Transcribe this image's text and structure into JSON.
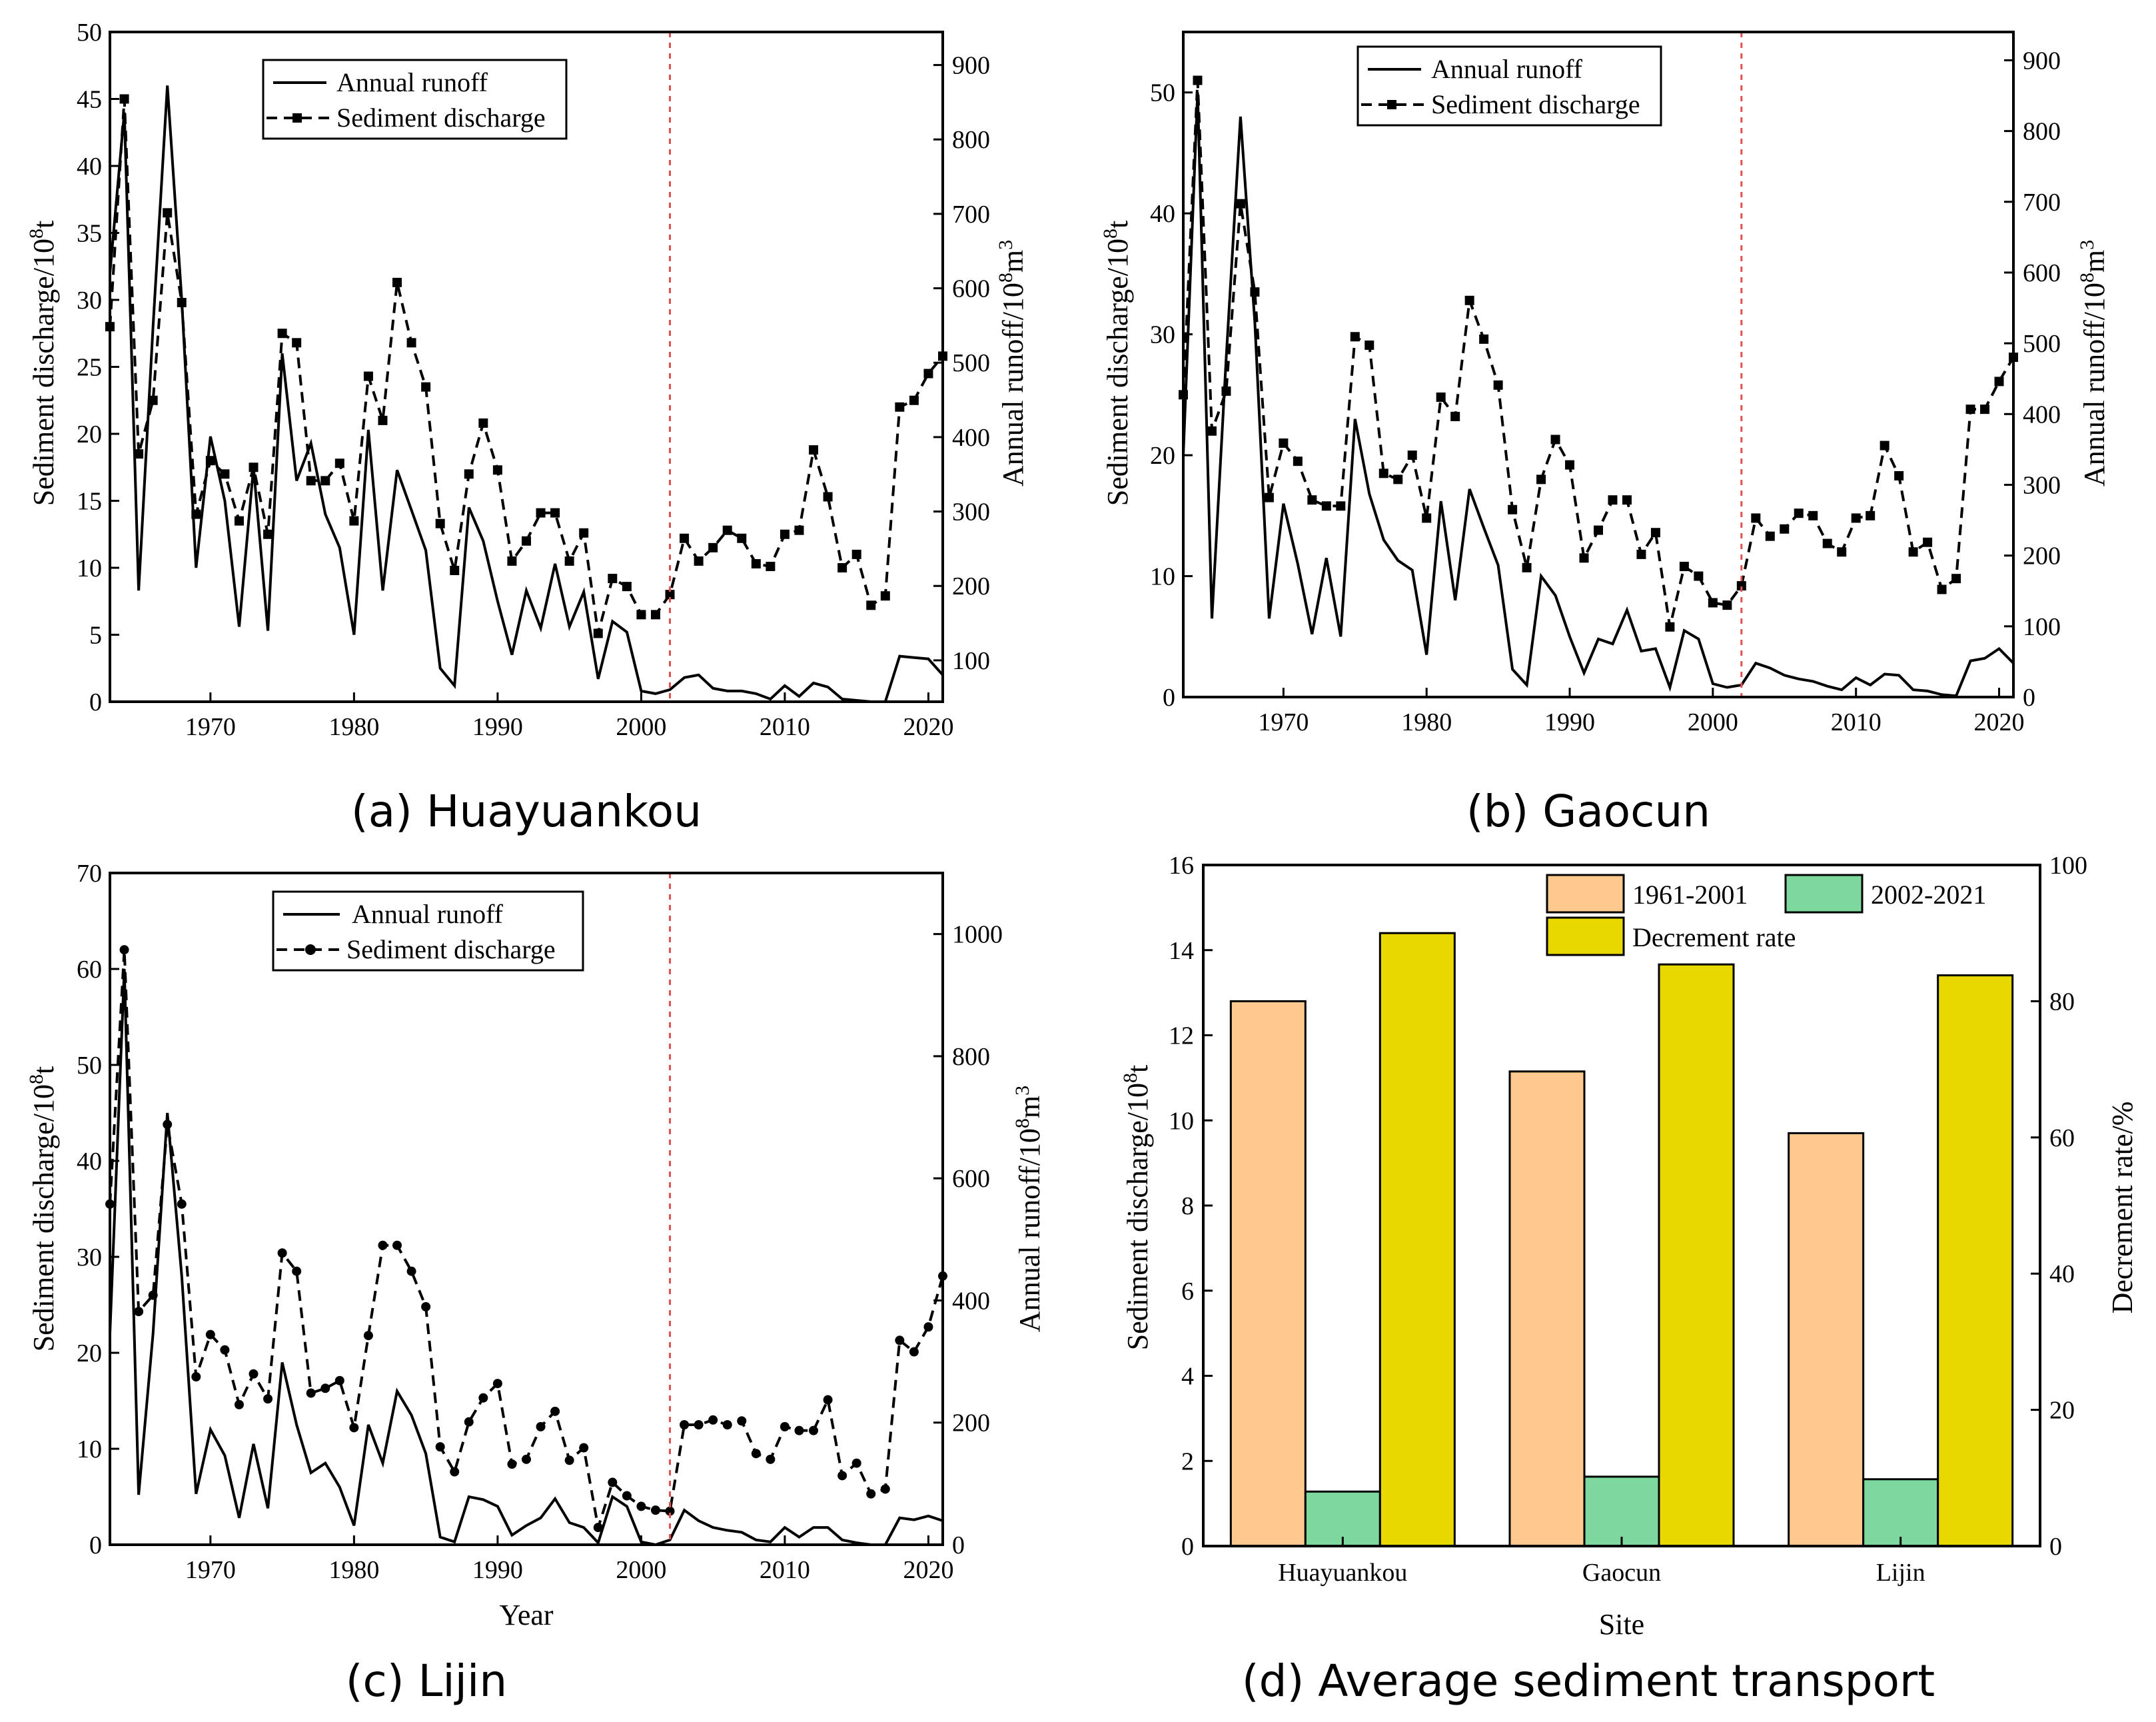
{
  "chart_data": [
    {
      "id": "a",
      "type": "line",
      "caption": "(a) Huayuankou",
      "xlabel": "",
      "ylabel_left_main": "Sediment discharge/10",
      "ylabel_left_sup": "8",
      "ylabel_left_tail": "t",
      "ylabel_right_main": "Annual runoff/10",
      "ylabel_right_sup": "8",
      "ylabel_right_tail": "m",
      "ylabel_right_sup2": "3",
      "xlim": [
        1963,
        2021
      ],
      "ylim_left": [
        0,
        50
      ],
      "ylim_right": [
        44.4,
        944.4
      ],
      "x_ticks": [
        1970,
        1980,
        1990,
        2000,
        2010,
        2020
      ],
      "x_tick_labels": [
        "1970",
        "1980",
        "1990",
        "2000",
        "2010",
        "2020"
      ],
      "left_ticks": [
        0,
        5,
        10,
        15,
        20,
        25,
        30,
        35,
        40,
        45,
        50
      ],
      "left_tick_labels": [
        "0",
        "5",
        "10",
        "15",
        "20",
        "25",
        "30",
        "35",
        "40",
        "45",
        "50"
      ],
      "right_ticks": [
        100,
        200,
        300,
        400,
        500,
        600,
        700,
        800,
        900
      ],
      "right_tick_labels": [
        "100",
        "200",
        "300",
        "400",
        "500",
        "600",
        "700",
        "800",
        "900"
      ],
      "divider_x": 2002,
      "legend": {
        "position": "top-left",
        "runoff_label": "Annual runoff",
        "sediment_label": "Sediment discharge"
      },
      "years": [
        1963,
        1964,
        1965,
        1966,
        1967,
        1968,
        1969,
        1970,
        1971,
        1972,
        1973,
        1974,
        1975,
        1976,
        1977,
        1978,
        1979,
        1980,
        1981,
        1982,
        1983,
        1984,
        1985,
        1986,
        1987,
        1988,
        1989,
        1990,
        1991,
        1992,
        1993,
        1994,
        1995,
        1996,
        1997,
        1998,
        1999,
        2000,
        2001,
        2002,
        2003,
        2004,
        2005,
        2006,
        2007,
        2008,
        2009,
        2010,
        2011,
        2012,
        2013,
        2014,
        2015,
        2016,
        2017,
        2018,
        2019,
        2020,
        2021
      ],
      "runoff_left_scale": [
        32,
        44,
        8.3,
        28,
        46,
        30,
        10,
        19.8,
        15,
        5.6,
        17.5,
        5.3,
        26,
        16.5,
        19.3,
        14,
        11.5,
        5,
        20.3,
        8.3,
        17.3,
        14.3,
        11.3,
        2.5,
        1.2,
        14.5,
        12,
        7.5,
        3.5,
        8.3,
        5.5,
        10.3,
        5.6,
        8.2,
        1.7,
        6,
        5.2,
        0.8,
        0.6,
        0.9,
        1.8,
        2,
        1,
        0.8,
        0.8,
        0.6,
        0.2,
        1.2,
        0.4,
        1.4,
        1.1,
        0.2,
        0.1,
        0,
        0,
        3.4,
        3.3,
        3.2,
        2
      ],
      "sediment": [
        28,
        45,
        18.5,
        22.5,
        36.5,
        29.8,
        14,
        18,
        17,
        13.5,
        17.5,
        12.5,
        27.5,
        26.8,
        16.5,
        16.5,
        17.8,
        13.5,
        24.3,
        21,
        31.3,
        26.8,
        23.5,
        13.3,
        9.8,
        17,
        20.8,
        17.3,
        10.5,
        12,
        14.1,
        14.1,
        10.5,
        12.6,
        5.1,
        9.2,
        8.6,
        6.5,
        6.5,
        8,
        12.2,
        10.5,
        11.5,
        12.8,
        12.2,
        10.3,
        10.1,
        12.5,
        12.8,
        18.8,
        15.3,
        10,
        11,
        7.2,
        7.9,
        22,
        22.5,
        24.5,
        25.8
      ]
    },
    {
      "id": "b",
      "type": "line",
      "caption": "(b) Gaocun",
      "xlabel": "",
      "ylabel_left_main": "Sediment discharge/10",
      "ylabel_left_sup": "8",
      "ylabel_left_tail": "t",
      "ylabel_right_main": "Annual runoff/10",
      "ylabel_right_sup": "8",
      "ylabel_right_tail": "m",
      "ylabel_right_sup2": "3",
      "xlim": [
        1963,
        2021
      ],
      "ylim_left": [
        0,
        55
      ],
      "ylim_right": [
        0,
        940
      ],
      "x_ticks": [
        1970,
        1980,
        1990,
        2000,
        2010,
        2020
      ],
      "x_tick_labels": [
        "1970",
        "1980",
        "1990",
        "2000",
        "2010",
        "2020"
      ],
      "left_ticks": [
        0,
        10,
        20,
        30,
        40,
        50
      ],
      "left_tick_labels": [
        "0",
        "10",
        "20",
        "30",
        "40",
        "50"
      ],
      "right_ticks": [
        0,
        100,
        200,
        300,
        400,
        500,
        600,
        700,
        800,
        900
      ],
      "right_tick_labels": [
        "0",
        "100",
        "200",
        "300",
        "400",
        "500",
        "600",
        "700",
        "800",
        "900"
      ],
      "divider_x": 2002,
      "legend": {
        "position": "top-left",
        "runoff_label": "Annual runoff",
        "sediment_label": "Sediment discharge"
      },
      "years": [
        1963,
        1964,
        1965,
        1966,
        1967,
        1968,
        1969,
        1970,
        1971,
        1972,
        1973,
        1974,
        1975,
        1976,
        1977,
        1978,
        1979,
        1980,
        1981,
        1982,
        1983,
        1984,
        1985,
        1986,
        1987,
        1988,
        1989,
        1990,
        1991,
        1992,
        1993,
        1994,
        1995,
        1996,
        1997,
        1998,
        1999,
        2000,
        2001,
        2002,
        2003,
        2004,
        2005,
        2006,
        2007,
        2008,
        2009,
        2010,
        2011,
        2012,
        2013,
        2014,
        2015,
        2016,
        2017,
        2018,
        2019,
        2020,
        2021
      ],
      "runoff_left_scale": [
        20,
        50,
        6.5,
        28,
        48,
        31,
        6.5,
        16,
        11,
        5.2,
        11.5,
        5,
        23,
        16.8,
        13,
        11.3,
        10.5,
        3.5,
        16.2,
        8,
        17.2,
        14,
        10.9,
        2.3,
        1,
        10,
        8.4,
        5,
        2,
        4.8,
        4.4,
        7.2,
        3.8,
        4,
        0.8,
        5.5,
        4.8,
        1.1,
        0.8,
        1,
        2.8,
        2.4,
        1.8,
        1.5,
        1.3,
        0.9,
        0.6,
        1.6,
        1,
        1.9,
        1.8,
        0.6,
        0.5,
        0.2,
        0.1,
        3,
        3.2,
        4,
        2.8
      ],
      "sediment": [
        25,
        51,
        22,
        25.3,
        40.8,
        33.5,
        16.5,
        21,
        19.5,
        16.3,
        15.8,
        15.8,
        29.8,
        29.1,
        18.5,
        18,
        20,
        14.8,
        24.8,
        23.2,
        32.8,
        29.6,
        25.8,
        15.5,
        10.7,
        18,
        21.3,
        19.2,
        11.5,
        13.8,
        16.3,
        16.3,
        11.8,
        13.6,
        5.8,
        10.8,
        10,
        7.8,
        7.6,
        9.2,
        14.8,
        13.3,
        13.9,
        15.2,
        15,
        12.7,
        12,
        14.8,
        15,
        20.8,
        18.3,
        12,
        12.8,
        8.9,
        9.8,
        23.8,
        23.8,
        26.1,
        28.1
      ]
    },
    {
      "id": "c",
      "type": "line",
      "caption": "(c) Lijin",
      "xlabel": "Year",
      "ylabel_left_main": "Sediment discharge/10",
      "ylabel_left_sup": "8",
      "ylabel_left_tail": "t",
      "ylabel_right_main": "Annual runoff/10",
      "ylabel_right_sup": "8",
      "ylabel_right_tail": "m",
      "ylabel_right_sup2": "3",
      "xlim": [
        1963,
        2021
      ],
      "ylim_left": [
        0,
        70
      ],
      "ylim_right": [
        0,
        1100
      ],
      "x_ticks": [
        1970,
        1980,
        1990,
        2000,
        2010,
        2020
      ],
      "x_tick_labels": [
        "1970",
        "1980",
        "1990",
        "2000",
        "2010",
        "2020"
      ],
      "left_ticks": [
        0,
        10,
        20,
        30,
        40,
        50,
        60,
        70
      ],
      "left_tick_labels": [
        "0",
        "10",
        "20",
        "30",
        "40",
        "50",
        "60",
        "70"
      ],
      "right_ticks": [
        0,
        200,
        400,
        600,
        800,
        1000
      ],
      "right_tick_labels": [
        "0",
        "200",
        "400",
        "600",
        "800",
        "1000"
      ],
      "divider_x": 2002,
      "legend": {
        "position": "top-left",
        "runoff_label": "Annual runoff",
        "sediment_label": "Sediment discharge"
      },
      "years": [
        1963,
        1964,
        1965,
        1966,
        1967,
        1968,
        1969,
        1970,
        1971,
        1972,
        1973,
        1974,
        1975,
        1976,
        1977,
        1978,
        1979,
        1980,
        1981,
        1982,
        1983,
        1984,
        1985,
        1986,
        1987,
        1988,
        1989,
        1990,
        1991,
        1992,
        1993,
        1994,
        1995,
        1996,
        1997,
        1998,
        1999,
        2000,
        2001,
        2002,
        2003,
        2004,
        2005,
        2006,
        2007,
        2008,
        2009,
        2010,
        2011,
        2012,
        2013,
        2014,
        2015,
        2016,
        2017,
        2018,
        2019,
        2020,
        2021
      ],
      "runoff_left_scale": [
        22,
        60,
        5.2,
        22,
        45,
        28,
        5.3,
        12,
        9.3,
        2.8,
        10.5,
        3.8,
        19,
        12.5,
        7.5,
        8.5,
        6,
        2,
        12.5,
        8.5,
        16,
        13.5,
        9.5,
        0.8,
        0.3,
        5,
        4.7,
        4,
        1,
        2,
        2.8,
        4.8,
        2.3,
        1.8,
        0.2,
        5,
        4,
        0.3,
        0,
        0.5,
        3.6,
        2.5,
        1.8,
        1.5,
        1.3,
        0.5,
        0.3,
        1.8,
        0.8,
        1.8,
        1.8,
        0.5,
        0.2,
        0,
        0,
        2.8,
        2.6,
        3,
        2.5
      ],
      "sediment": [
        35.5,
        62,
        24.3,
        26,
        43.8,
        35.5,
        17.5,
        21.9,
        20.3,
        14.6,
        17.8,
        15.2,
        30.4,
        28.5,
        15.8,
        16.3,
        17.1,
        12.2,
        21.8,
        31.2,
        31.2,
        28.5,
        24.8,
        10.2,
        7.6,
        12.8,
        15.3,
        16.8,
        8.4,
        8.9,
        12.3,
        13.9,
        8.8,
        10.1,
        1.8,
        6.5,
        5.1,
        4,
        3.6,
        3.5,
        12.5,
        12.5,
        13,
        12.5,
        12.9,
        9.5,
        8.9,
        12.3,
        11.9,
        11.9,
        15.1,
        7.2,
        8.5,
        5.3,
        5.8,
        21.3,
        20.1,
        22.7,
        28
      ]
    },
    {
      "id": "d",
      "type": "bar",
      "caption": "(d) Average sediment transport",
      "xlabel": "Site",
      "ylabel_left_main": "Sediment discharge/10",
      "ylabel_left_sup": "8",
      "ylabel_left_tail": "t",
      "ylabel_right_main": "Decrement rate/%",
      "categories": [
        "Huayuankou",
        "Gaocun",
        "Lijin"
      ],
      "ylim_left": [
        0,
        16
      ],
      "ylim_right": [
        0,
        100
      ],
      "left_ticks": [
        0,
        2,
        4,
        6,
        8,
        10,
        12,
        14,
        16
      ],
      "left_tick_labels": [
        "0",
        "2",
        "4",
        "6",
        "8",
        "10",
        "12",
        "14",
        "16"
      ],
      "right_ticks": [
        0,
        20,
        40,
        60,
        80,
        100
      ],
      "right_tick_labels": [
        "0",
        "20",
        "40",
        "60",
        "80",
        "100"
      ],
      "legend": {
        "position": "top-right",
        "label_1961": "1961-2001",
        "label_2002": "2002-2021",
        "label_rate": "Decrement rate"
      },
      "series": [
        {
          "name": "1961-2001",
          "axis": "left",
          "color": "#FDC98F",
          "values": [
            12.8,
            11.15,
            9.7
          ]
        },
        {
          "name": "2002-2021",
          "axis": "left",
          "color": "#7CD89C",
          "values": [
            1.28,
            1.63,
            1.57
          ]
        },
        {
          "name": "Decrement rate",
          "axis": "right",
          "color": "#E8D800",
          "values": [
            90,
            85.4,
            83.8
          ]
        }
      ]
    }
  ]
}
